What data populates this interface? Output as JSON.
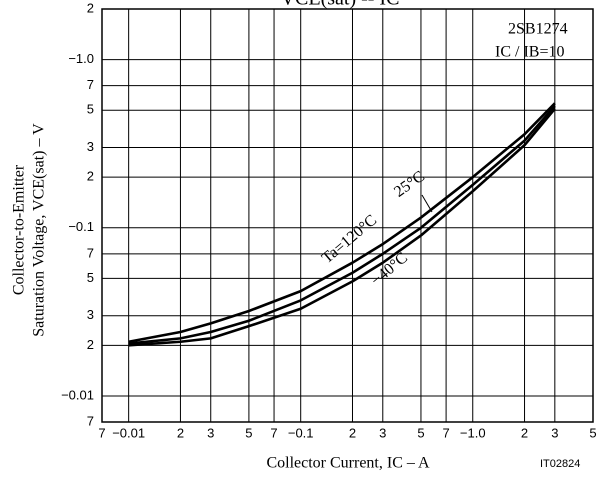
{
  "chart_data": {
    "type": "line",
    "title": "VCE(sat) -- IC",
    "x_label": "Collector Current, IC  –  A",
    "y_label": [
      "Collector-to-Emitter",
      "Saturation Voltage, VCE(sat)  –  V"
    ],
    "annotations": [
      "2SB1274",
      "IC / IB=10",
      "IT02824"
    ],
    "log_x": true,
    "log_y": true,
    "grid": true,
    "xlim": [
      0.007,
      5
    ],
    "ylim": [
      0.007,
      2
    ],
    "xticks": [
      {
        "value": 0.007,
        "label": "7"
      },
      {
        "value": 0.01,
        "label": "−0.01"
      },
      {
        "value": 0.02,
        "label": "2"
      },
      {
        "value": 0.03,
        "label": "3"
      },
      {
        "value": 0.05,
        "label": "5"
      },
      {
        "value": 0.07,
        "label": "7"
      },
      {
        "value": 0.1,
        "label": "−0.1"
      },
      {
        "value": 0.2,
        "label": "2"
      },
      {
        "value": 0.3,
        "label": "3"
      },
      {
        "value": 0.5,
        "label": "5"
      },
      {
        "value": 0.7,
        "label": "7"
      },
      {
        "value": 1.0,
        "label": "−1.0"
      },
      2,
      3,
      5
    ],
    "yticks": [
      {
        "value": 0.007,
        "label": "7"
      },
      {
        "value": 0.01,
        "label": "−0.01"
      },
      {
        "value": 0.02,
        "label": "2"
      },
      {
        "value": 0.03,
        "label": "3"
      },
      {
        "value": 0.05,
        "label": "5"
      },
      {
        "value": 0.07,
        "label": "7"
      },
      {
        "value": 0.1,
        "label": "−0.1"
      },
      {
        "value": 0.2,
        "label": "2"
      },
      {
        "value": 0.3,
        "label": "3"
      },
      {
        "value": 0.5,
        "label": "5"
      },
      {
        "value": 0.7,
        "label": "7"
      },
      {
        "value": 1.0,
        "label": "−1.0"
      },
      2
    ],
    "x": [
      0.01,
      0.02,
      0.03,
      0.05,
      0.1,
      0.2,
      0.3,
      0.5,
      1,
      2,
      3
    ],
    "series": [
      {
        "name": "Ta=120°C",
        "color": "#000000",
        "values": [
          0.021,
          0.024,
          0.027,
          0.032,
          0.042,
          0.062,
          0.08,
          0.115,
          0.2,
          0.36,
          0.55
        ]
      },
      {
        "name": "25°C",
        "color": "#000000",
        "values": [
          0.0205,
          0.022,
          0.024,
          0.028,
          0.037,
          0.054,
          0.07,
          0.1,
          0.18,
          0.33,
          0.53
        ]
      },
      {
        "name": "−40°C",
        "color": "#000000",
        "values": [
          0.02,
          0.021,
          0.022,
          0.026,
          0.033,
          0.048,
          0.062,
          0.09,
          0.165,
          0.31,
          0.51
        ]
      }
    ]
  }
}
